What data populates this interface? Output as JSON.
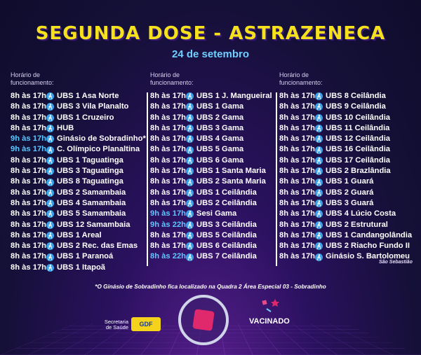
{
  "title": "SEGUNDA DOSE - ASTRAZENECA",
  "date": "24 de setembro",
  "column_header": "Horário de\nfuncionamento:",
  "columns": [
    [
      {
        "time": "8h às 17h",
        "place": "UBS 1 Asa Norte",
        "hl": false
      },
      {
        "time": "8h às 17h",
        "place": "UBS 3 Vila Planalto",
        "hl": false
      },
      {
        "time": "8h às 17h",
        "place": "UBS 1 Cruzeiro",
        "hl": false
      },
      {
        "time": "8h às 17h",
        "place": "HUB",
        "hl": false
      },
      {
        "time": "9h às 17h",
        "place": "Ginásio de Sobradinho*",
        "hl": true
      },
      {
        "time": "9h às 17h",
        "place": "C. Olímpico Planaltina",
        "hl": true
      },
      {
        "time": "8h às 17h",
        "place": "UBS 1 Taguatinga",
        "hl": false
      },
      {
        "time": "8h às 17h",
        "place": "UBS 3 Taguatinga",
        "hl": false
      },
      {
        "time": "8h às 17h",
        "place": "UBS 8 Taguatinga",
        "hl": false
      },
      {
        "time": "8h às 17h",
        "place": "UBS 2 Samambaia",
        "hl": false
      },
      {
        "time": "8h às 17h",
        "place": "UBS 4 Samambaia",
        "hl": false
      },
      {
        "time": "8h às 17h",
        "place": "UBS 5 Samambaia",
        "hl": false
      },
      {
        "time": "8h às 17h",
        "place": "UBS 12 Samambaia",
        "hl": false
      },
      {
        "time": "8h às 17h",
        "place": "UBS 1 Areal",
        "hl": false
      },
      {
        "time": "8h às 17h",
        "place": "UBS 2 Rec. das Emas",
        "hl": false
      },
      {
        "time": "8h às 17h",
        "place": "UBS 1 Paranoá",
        "hl": false
      },
      {
        "time": "8h às 17h",
        "place": "UBS 1 Itapoã",
        "hl": false
      }
    ],
    [
      {
        "time": "8h às 17h",
        "place": "UBS 1 J. Mangueiral",
        "hl": false
      },
      {
        "time": "8h às 17h",
        "place": "UBS 1 Gama",
        "hl": false
      },
      {
        "time": "8h às 17h",
        "place": "UBS 2 Gama",
        "hl": false
      },
      {
        "time": "8h às 17h",
        "place": "UBS 3 Gama",
        "hl": false
      },
      {
        "time": "8h às 17h",
        "place": "UBS 4 Gama",
        "hl": false
      },
      {
        "time": "8h às 17h",
        "place": "UBS 5 Gama",
        "hl": false
      },
      {
        "time": "8h às 17h",
        "place": "UBS 6 Gama",
        "hl": false
      },
      {
        "time": "8h às 17h",
        "place": "UBS 1 Santa Maria",
        "hl": false
      },
      {
        "time": "8h às 17h",
        "place": "UBS 2 Santa Maria",
        "hl": false
      },
      {
        "time": "8h às 17h",
        "place": "UBS 1 Ceilândia",
        "hl": false
      },
      {
        "time": "8h às 17h",
        "place": "UBS 2 Ceilândia",
        "hl": false
      },
      {
        "time": "9h às 17h",
        "place": "Sesi Gama",
        "hl": true
      },
      {
        "time": "9h às 22h",
        "place": "UBS 3 Ceilândia",
        "hl": true
      },
      {
        "time": "8h às 17h",
        "place": "UBS 5 Ceilândia",
        "hl": false
      },
      {
        "time": "8h às 17h",
        "place": "UBS 6 Ceilândia",
        "hl": false
      },
      {
        "time": "8h às 22h",
        "place": "UBS 7 Ceilândia",
        "hl": true
      }
    ],
    [
      {
        "time": "8h às 17h",
        "place": "UBS 8 Ceilândia",
        "hl": false
      },
      {
        "time": "8h às 17h",
        "place": "UBS 9 Ceilândia",
        "hl": false
      },
      {
        "time": "8h às 17h",
        "place": "UBS 10 Ceilândia",
        "hl": false
      },
      {
        "time": "8h às 17h",
        "place": "UBS 11 Ceilândia",
        "hl": false
      },
      {
        "time": "8h às 17h",
        "place": "UBS 12 Ceilândia",
        "hl": false
      },
      {
        "time": "8h às 17h",
        "place": "UBS 16 Ceilândia",
        "hl": false
      },
      {
        "time": "8h às 17h",
        "place": "UBS 17 Ceilândia",
        "hl": false
      },
      {
        "time": "8h às 17h",
        "place": "UBS 2 Brazlândia",
        "hl": false
      },
      {
        "time": "8h às 17h",
        "place": "UBS 1 Guará",
        "hl": false
      },
      {
        "time": "8h às 17h",
        "place": "UBS 2 Guará",
        "hl": false
      },
      {
        "time": "8h às 17h",
        "place": "UBS 3 Guará",
        "hl": false
      },
      {
        "time": "8h às 17h",
        "place": "UBS 4 Lúcio Costa",
        "hl": false
      },
      {
        "time": "8h às 17h",
        "place": "UBS 2 Estrutural",
        "hl": false
      },
      {
        "time": "8h às 17h",
        "place": "UBS 1 Candangolândia",
        "hl": false
      },
      {
        "time": "8h às 17h",
        "place": "UBS 2 Riacho Fundo II",
        "hl": false
      },
      {
        "time": "8h às 17h",
        "place": "Ginásio S. Bartolomeu",
        "hl": false
      }
    ]
  ],
  "sao_sebastiao_note": "São Sebastião",
  "footnote": "*O Ginásio de Sobradinho fica localizado na Quadra 2 Área Especial 03 - Sobradinho",
  "footer": {
    "secretaria": "Secretaria de Saúde",
    "gdf": "GDF",
    "vacinado": "VACINADO"
  },
  "colors": {
    "title": "#f5e21c",
    "date": "#6fd0ff",
    "highlight_time": "#5cc8ff",
    "icon": "#3aa0e8"
  },
  "icons": {
    "walk": "walking-person-icon"
  }
}
